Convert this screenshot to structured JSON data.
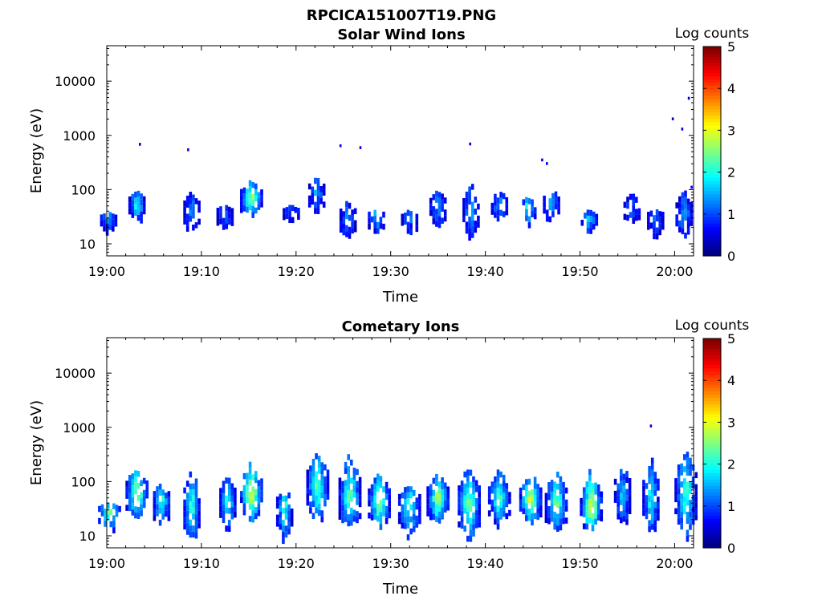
{
  "figure_title": "RPCICA151007T19.PNG",
  "chart_data": [
    {
      "type": "heatmap",
      "title": "Solar Wind Ions",
      "xlabel": "Time",
      "ylabel": "Energy (eV)",
      "x_tick_labels": [
        "19:00",
        "19:10",
        "19:20",
        "19:30",
        "19:40",
        "19:50",
        "20:00"
      ],
      "y_tick_labels": [
        "10",
        "100",
        "1000",
        "10000"
      ],
      "y_scale": "log",
      "ylim": [
        6,
        45000
      ],
      "xlim_minutes": [
        0,
        62
      ],
      "colorbar": {
        "label": "Log counts",
        "range": [
          0,
          5
        ],
        "tick_labels": [
          "0",
          "1",
          "2",
          "3",
          "4",
          "5"
        ],
        "colormap": "jet"
      },
      "grid": false,
      "bursts": [
        {
          "t": 0.2,
          "e": 30,
          "lo": 15,
          "hi": 42,
          "peak": 1.2
        },
        {
          "t": 3.2,
          "e": 55,
          "lo": 22,
          "hi": 110,
          "peak": 1.8
        },
        {
          "t": 9.0,
          "e": 40,
          "lo": 16,
          "hi": 110,
          "peak": 1.1
        },
        {
          "t": 12.5,
          "e": 40,
          "lo": 18,
          "hi": 55,
          "peak": 0.9
        },
        {
          "t": 15.3,
          "e": 70,
          "lo": 30,
          "hi": 170,
          "peak": 2.6
        },
        {
          "t": 19.5,
          "e": 40,
          "lo": 25,
          "hi": 55,
          "peak": 0.9
        },
        {
          "t": 22.2,
          "e": 90,
          "lo": 30,
          "hi": 210,
          "peak": 1.2
        },
        {
          "t": 25.5,
          "e": 30,
          "lo": 11,
          "hi": 75,
          "peak": 1.0
        },
        {
          "t": 28.5,
          "e": 35,
          "lo": 15,
          "hi": 45,
          "peak": 1.6
        },
        {
          "t": 32.0,
          "e": 30,
          "lo": 15,
          "hi": 45,
          "peak": 1.0
        },
        {
          "t": 35.0,
          "e": 50,
          "lo": 20,
          "hi": 110,
          "peak": 1.1
        },
        {
          "t": 38.5,
          "e": 40,
          "lo": 12,
          "hi": 150,
          "peak": 1.3
        },
        {
          "t": 41.5,
          "e": 50,
          "lo": 25,
          "hi": 120,
          "peak": 1.2
        },
        {
          "t": 44.5,
          "e": 50,
          "lo": 18,
          "hi": 80,
          "peak": 1.9
        },
        {
          "t": 47.0,
          "e": 50,
          "lo": 25,
          "hi": 130,
          "peak": 1.3
        },
        {
          "t": 51.0,
          "e": 30,
          "lo": 15,
          "hi": 45,
          "peak": 1.5
        },
        {
          "t": 55.5,
          "e": 40,
          "lo": 25,
          "hi": 100,
          "peak": 0.8
        },
        {
          "t": 58.0,
          "e": 35,
          "lo": 12,
          "hi": 45,
          "peak": 0.9
        },
        {
          "t": 61.0,
          "e": 35,
          "lo": 12,
          "hi": 110,
          "peak": 1.3
        }
      ],
      "scatter": [
        {
          "t": 3.5,
          "e": 680,
          "v": 0.5
        },
        {
          "t": 8.6,
          "e": 540,
          "v": 0.5
        },
        {
          "t": 24.7,
          "e": 640,
          "v": 0.5
        },
        {
          "t": 26.8,
          "e": 590,
          "v": 0.5
        },
        {
          "t": 38.4,
          "e": 690,
          "v": 0.5
        },
        {
          "t": 46.0,
          "e": 350,
          "v": 0.5
        },
        {
          "t": 46.5,
          "e": 300,
          "v": 0.5
        },
        {
          "t": 59.8,
          "e": 2000,
          "v": 0.5
        },
        {
          "t": 60.8,
          "e": 1300,
          "v": 0.5
        },
        {
          "t": 61.5,
          "e": 4800,
          "v": 0.5
        },
        {
          "t": 61.8,
          "e": 110,
          "v": 0.5
        }
      ]
    },
    {
      "type": "heatmap",
      "title": "Cometary Ions",
      "xlabel": "Time",
      "ylabel": "Energy (eV)",
      "x_tick_labels": [
        "19:00",
        "19:10",
        "19:20",
        "19:30",
        "19:40",
        "19:50",
        "20:00"
      ],
      "y_tick_labels": [
        "10",
        "100",
        "1000",
        "10000"
      ],
      "y_scale": "log",
      "ylim": [
        6,
        45000
      ],
      "xlim_minutes": [
        0,
        62
      ],
      "colorbar": {
        "label": "Log counts",
        "range": [
          0,
          5
        ],
        "tick_labels": [
          "0",
          "1",
          "2",
          "3",
          "4",
          "5"
        ],
        "colormap": "jet"
      },
      "grid": false,
      "bursts": [
        {
          "t": 0.3,
          "e": 30,
          "lo": 11,
          "hi": 45,
          "peak": 2.4
        },
        {
          "t": 3.2,
          "e": 55,
          "lo": 18,
          "hi": 250,
          "peak": 2.6
        },
        {
          "t": 5.8,
          "e": 45,
          "lo": 12,
          "hi": 110,
          "peak": 2.0
        },
        {
          "t": 9.0,
          "e": 40,
          "lo": 6,
          "hi": 200,
          "peak": 2.0
        },
        {
          "t": 12.8,
          "e": 40,
          "lo": 12,
          "hi": 180,
          "peak": 2.0
        },
        {
          "t": 15.3,
          "e": 60,
          "lo": 15,
          "hi": 280,
          "peak": 3.0
        },
        {
          "t": 18.8,
          "e": 35,
          "lo": 6,
          "hi": 90,
          "peak": 1.9
        },
        {
          "t": 22.3,
          "e": 80,
          "lo": 15,
          "hi": 460,
          "peak": 2.2
        },
        {
          "t": 25.7,
          "e": 45,
          "lo": 12,
          "hi": 450,
          "peak": 2.3
        },
        {
          "t": 28.8,
          "e": 40,
          "lo": 12,
          "hi": 190,
          "peak": 2.5
        },
        {
          "t": 32.0,
          "e": 40,
          "lo": 8,
          "hi": 100,
          "peak": 2.1
        },
        {
          "t": 35.0,
          "e": 50,
          "lo": 15,
          "hi": 160,
          "peak": 2.7
        },
        {
          "t": 38.3,
          "e": 40,
          "lo": 6,
          "hi": 250,
          "peak": 2.3
        },
        {
          "t": 41.5,
          "e": 45,
          "lo": 15,
          "hi": 190,
          "peak": 2.1
        },
        {
          "t": 44.8,
          "e": 45,
          "lo": 15,
          "hi": 170,
          "peak": 2.8
        },
        {
          "t": 47.5,
          "e": 40,
          "lo": 10,
          "hi": 210,
          "peak": 2.3
        },
        {
          "t": 51.2,
          "e": 30,
          "lo": 11,
          "hi": 200,
          "peak": 3.1
        },
        {
          "t": 54.5,
          "e": 60,
          "lo": 12,
          "hi": 260,
          "peak": 1.4
        },
        {
          "t": 57.5,
          "e": 45,
          "lo": 8,
          "hi": 350,
          "peak": 1.8
        },
        {
          "t": 61.2,
          "e": 60,
          "lo": 8,
          "hi": 560,
          "peak": 2.1
        }
      ],
      "scatter": [
        {
          "t": 57.5,
          "e": 1050,
          "v": 0.5
        }
      ]
    }
  ]
}
